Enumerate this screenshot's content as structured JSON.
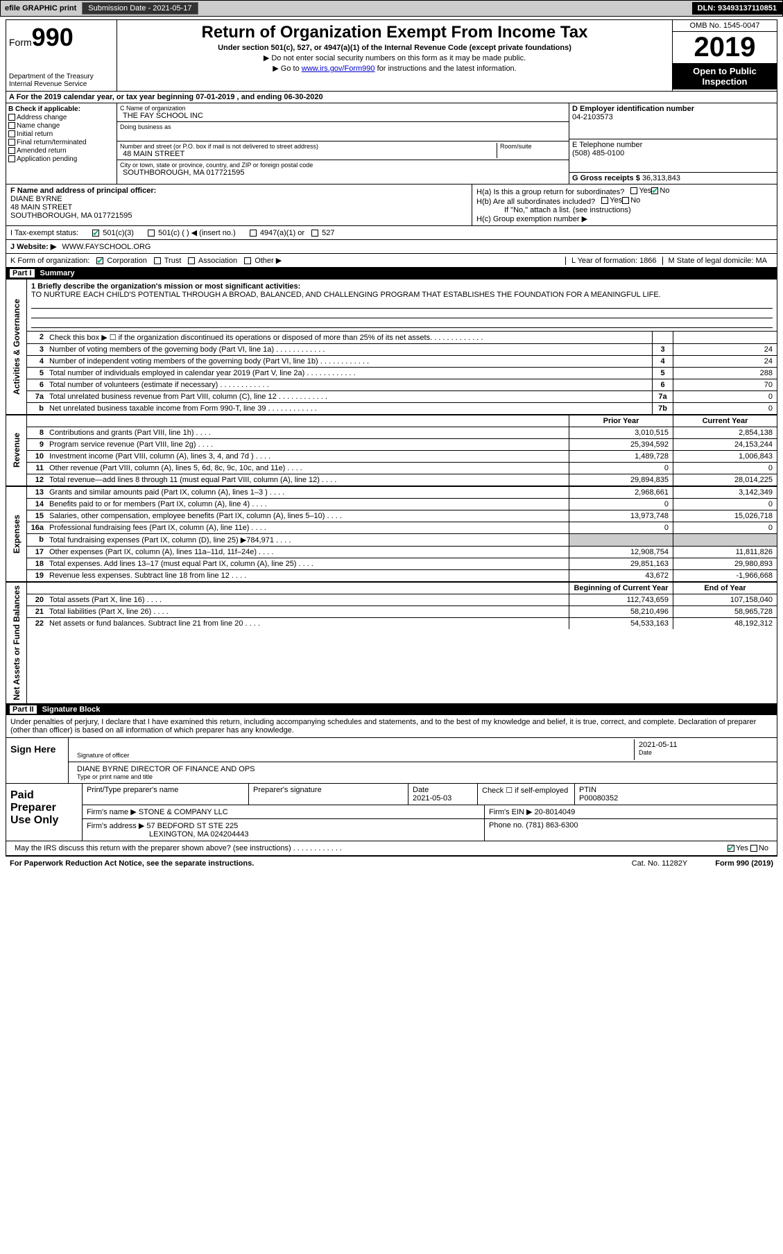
{
  "topbar": {
    "efile": "efile GRAPHIC print",
    "subdate_lbl": "Submission Date - ",
    "subdate": "2021-05-17",
    "dln": "DLN: 93493137110851"
  },
  "header": {
    "form_word": "Form",
    "form_num": "990",
    "dept": "Department of the Treasury\nInternal Revenue Service",
    "title": "Return of Organization Exempt From Income Tax",
    "sub1": "Under section 501(c), 527, or 4947(a)(1) of the Internal Revenue Code (except private foundations)",
    "sub2": "▶ Do not enter social security numbers on this form as it may be made public.",
    "sub3_pre": "▶ Go to ",
    "sub3_link": "www.irs.gov/Form990",
    "sub3_post": " for instructions and the latest information.",
    "omb": "OMB No. 1545-0047",
    "year": "2019",
    "inspect": "Open to Public Inspection"
  },
  "rowA": "A For the 2019 calendar year, or tax year beginning 07-01-2019   , and ending 06-30-2020",
  "boxB": {
    "hdr": "B Check if applicable:",
    "items": [
      "Address change",
      "Name change",
      "Initial return",
      "Final return/terminated",
      "Amended return",
      "Application pending"
    ]
  },
  "boxC": {
    "name_lbl": "C Name of organization",
    "name": "THE FAY SCHOOL INC",
    "dba_lbl": "Doing business as",
    "addr_lbl": "Number and street (or P.O. box if mail is not delivered to street address)",
    "room_lbl": "Room/suite",
    "addr": "48 MAIN STREET",
    "city_lbl": "City or town, state or province, country, and ZIP or foreign postal code",
    "city": "SOUTHBOROUGH, MA  017721595"
  },
  "boxD": {
    "lbl": "D Employer identification number",
    "val": "04-2103573"
  },
  "boxE": {
    "lbl": "E Telephone number",
    "val": "(508) 485-0100"
  },
  "boxG": {
    "lbl": "G Gross receipts $",
    "val": "36,313,843"
  },
  "boxF": {
    "lbl": "F Name and address of principal officer:",
    "name": "DIANE BYRNE",
    "addr1": "48 MAIN STREET",
    "addr2": "SOUTHBOROUGH, MA  017721595"
  },
  "boxH": {
    "a": "H(a)  Is this a group return for subordinates?",
    "b": "H(b)  Are all subordinates included?",
    "b2": "If \"No,\" attach a list. (see instructions)",
    "c": "H(c)  Group exemption number ▶"
  },
  "taxstatus": {
    "lbl": "I   Tax-exempt status:",
    "opts": [
      "501(c)(3)",
      "501(c) (  ) ◀ (insert no.)",
      "4947(a)(1) or",
      "527"
    ]
  },
  "website": {
    "lbl": "J   Website: ▶",
    "val": "WWW.FAYSCHOOL.ORG"
  },
  "korg": {
    "lbl": "K Form of organization:",
    "opts": [
      "Corporation",
      "Trust",
      "Association",
      "Other ▶"
    ],
    "L": "L Year of formation: 1866",
    "M": "M State of legal domicile: MA"
  },
  "part1": {
    "hdr": "Part I",
    "title": "Summary"
  },
  "mission": {
    "lbl": "1  Briefly describe the organization's mission or most significant activities:",
    "text": "TO NURTURE EACH CHILD'S POTENTIAL THROUGH A BROAD, BALANCED, AND CHALLENGING PROGRAM THAT ESTABLISHES THE FOUNDATION FOR A MEANINGFUL LIFE."
  },
  "gov_lines": [
    {
      "n": "2",
      "d": "Check this box ▶ ☐  if the organization discontinued its operations or disposed of more than 25% of its net assets.",
      "box": "",
      "v": ""
    },
    {
      "n": "3",
      "d": "Number of voting members of the governing body (Part VI, line 1a)",
      "box": "3",
      "v": "24"
    },
    {
      "n": "4",
      "d": "Number of independent voting members of the governing body (Part VI, line 1b)",
      "box": "4",
      "v": "24"
    },
    {
      "n": "5",
      "d": "Total number of individuals employed in calendar year 2019 (Part V, line 2a)",
      "box": "5",
      "v": "288"
    },
    {
      "n": "6",
      "d": "Total number of volunteers (estimate if necessary)",
      "box": "6",
      "v": "70"
    },
    {
      "n": "7a",
      "d": "Total unrelated business revenue from Part VIII, column (C), line 12",
      "box": "7a",
      "v": "0"
    },
    {
      "n": "b",
      "d": "Net unrelated business taxable income from Form 990-T, line 39",
      "box": "7b",
      "v": "0"
    }
  ],
  "col_hdrs": {
    "prior": "Prior Year",
    "current": "Current Year"
  },
  "rev_lines": [
    {
      "n": "8",
      "d": "Contributions and grants (Part VIII, line 1h)",
      "p": "3,010,515",
      "c": "2,854,138"
    },
    {
      "n": "9",
      "d": "Program service revenue (Part VIII, line 2g)",
      "p": "25,394,592",
      "c": "24,153,244"
    },
    {
      "n": "10",
      "d": "Investment income (Part VIII, column (A), lines 3, 4, and 7d )",
      "p": "1,489,728",
      "c": "1,006,843"
    },
    {
      "n": "11",
      "d": "Other revenue (Part VIII, column (A), lines 5, 6d, 8c, 9c, 10c, and 11e)",
      "p": "0",
      "c": "0"
    },
    {
      "n": "12",
      "d": "Total revenue—add lines 8 through 11 (must equal Part VIII, column (A), line 12)",
      "p": "29,894,835",
      "c": "28,014,225"
    }
  ],
  "exp_lines": [
    {
      "n": "13",
      "d": "Grants and similar amounts paid (Part IX, column (A), lines 1–3 )",
      "p": "2,968,661",
      "c": "3,142,349"
    },
    {
      "n": "14",
      "d": "Benefits paid to or for members (Part IX, column (A), line 4)",
      "p": "0",
      "c": "0"
    },
    {
      "n": "15",
      "d": "Salaries, other compensation, employee benefits (Part IX, column (A), lines 5–10)",
      "p": "13,973,748",
      "c": "15,026,718"
    },
    {
      "n": "16a",
      "d": "Professional fundraising fees (Part IX, column (A), line 11e)",
      "p": "0",
      "c": "0"
    },
    {
      "n": "b",
      "d": "Total fundraising expenses (Part IX, column (D), line 25) ▶784,971",
      "p": "",
      "c": "",
      "shaded": true
    },
    {
      "n": "17",
      "d": "Other expenses (Part IX, column (A), lines 11a–11d, 11f–24e)",
      "p": "12,908,754",
      "c": "11,811,826"
    },
    {
      "n": "18",
      "d": "Total expenses. Add lines 13–17 (must equal Part IX, column (A), line 25)",
      "p": "29,851,163",
      "c": "29,980,893"
    },
    {
      "n": "19",
      "d": "Revenue less expenses. Subtract line 18 from line 12",
      "p": "43,672",
      "c": "-1,966,668"
    }
  ],
  "na_hdrs": {
    "beg": "Beginning of Current Year",
    "end": "End of Year"
  },
  "na_lines": [
    {
      "n": "20",
      "d": "Total assets (Part X, line 16)",
      "p": "112,743,659",
      "c": "107,158,040"
    },
    {
      "n": "21",
      "d": "Total liabilities (Part X, line 26)",
      "p": "58,210,496",
      "c": "58,965,728"
    },
    {
      "n": "22",
      "d": "Net assets or fund balances. Subtract line 21 from line 20",
      "p": "54,533,163",
      "c": "48,192,312"
    }
  ],
  "vlabels": {
    "gov": "Activities & Governance",
    "rev": "Revenue",
    "exp": "Expenses",
    "na": "Net Assets or Fund Balances"
  },
  "part2": {
    "hdr": "Part II",
    "title": "Signature Block"
  },
  "sig": {
    "decl": "Under penalties of perjury, I declare that I have examined this return, including accompanying schedules and statements, and to the best of my knowledge and belief, it is true, correct, and complete. Declaration of preparer (other than officer) is based on all information of which preparer has any knowledge.",
    "sign_here": "Sign Here",
    "sig_officer": "Signature of officer",
    "date_lbl": "Date",
    "date": "2021-05-11",
    "name": "DIANE BYRNE  DIRECTOR OF FINANCE AND OPS",
    "name_lbl": "Type or print name and title"
  },
  "prep": {
    "lbl": "Paid Preparer Use Only",
    "h1": "Print/Type preparer's name",
    "h2": "Preparer's signature",
    "h3": "Date",
    "date": "2021-05-03",
    "chk_lbl": "Check ☐ if self-employed",
    "ptin_lbl": "PTIN",
    "ptin": "P00080352",
    "firm_lbl": "Firm's name   ▶",
    "firm": "STONE & COMPANY LLC",
    "ein_lbl": "Firm's EIN ▶",
    "ein": "20-8014049",
    "addr_lbl": "Firm's address ▶",
    "addr1": "57 BEDFORD ST STE 225",
    "addr2": "LEXINGTON, MA  024204443",
    "phone_lbl": "Phone no.",
    "phone": "(781) 863-6300"
  },
  "discuss": "May the IRS discuss this return with the preparer shown above? (see instructions)",
  "footer": {
    "pra": "For Paperwork Reduction Act Notice, see the separate instructions.",
    "cat": "Cat. No. 11282Y",
    "form": "Form 990 (2019)"
  }
}
